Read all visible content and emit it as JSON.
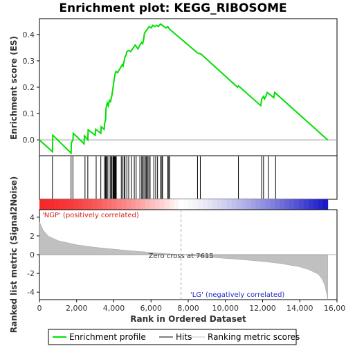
{
  "chart_data": {
    "type": "line",
    "title": "Enrichment plot: KEGG_RIBOSOME",
    "xlabel": "Rank in Ordered Dataset",
    "ylabel_top": "Enrichment score (ES)",
    "ylabel_bottom": "Ranked list metric (Signal2Noise)",
    "xlim": [
      0,
      16000
    ],
    "x_ticks": [
      "0",
      "2,000",
      "4,000",
      "6,000",
      "8,000",
      "10,000",
      "12,000",
      "14,000",
      "16,000"
    ],
    "x_tick_values": [
      0,
      2000,
      4000,
      6000,
      8000,
      10000,
      12000,
      14000,
      16000
    ],
    "es_ylim": [
      -0.06,
      0.46
    ],
    "es_ticks": [
      "0.0",
      "0.1",
      "0.2",
      "0.3",
      "0.4"
    ],
    "es_tick_values": [
      0.0,
      0.1,
      0.2,
      0.3,
      0.4
    ],
    "metric_ylim": [
      -4.8,
      4.8
    ],
    "metric_ticks": [
      "-4",
      "-2",
      "0",
      "2",
      "4"
    ],
    "metric_tick_values": [
      -4,
      -2,
      0,
      2,
      4
    ],
    "series": [
      {
        "name": "Enrichment profile",
        "color": "#00e000",
        "x": [
          0,
          700,
          720,
          1700,
          1720,
          1800,
          1820,
          2400,
          2420,
          2600,
          2620,
          3000,
          3020,
          3300,
          3320,
          3480,
          3500,
          3560,
          3580,
          3650,
          3700,
          3760,
          3820,
          3900,
          3960,
          4000,
          4040,
          4080,
          4120,
          4200,
          4450,
          4500,
          4600,
          4650,
          4700,
          4800,
          4900,
          5000,
          5150,
          5300,
          5400,
          5500,
          5550,
          5600,
          5650,
          5700,
          5800,
          5900,
          6000,
          6100,
          6200,
          6300,
          6400,
          6500,
          6600,
          6700,
          6800,
          6900,
          7000,
          8500,
          8700,
          10650,
          10700,
          11900,
          11950,
          12050,
          12100,
          12200,
          12250,
          12600,
          12650,
          15500
        ],
        "y": [
          0.0,
          -0.045,
          0.018,
          -0.05,
          -0.01,
          0.0,
          0.025,
          -0.015,
          0.015,
          0.0,
          0.038,
          0.018,
          0.04,
          0.025,
          0.05,
          0.04,
          0.06,
          0.08,
          0.12,
          0.14,
          0.13,
          0.15,
          0.145,
          0.17,
          0.2,
          0.22,
          0.24,
          0.255,
          0.26,
          0.255,
          0.285,
          0.28,
          0.315,
          0.32,
          0.335,
          0.34,
          0.335,
          0.345,
          0.36,
          0.345,
          0.36,
          0.37,
          0.365,
          0.38,
          0.405,
          0.41,
          0.42,
          0.43,
          0.425,
          0.435,
          0.43,
          0.435,
          0.43,
          0.44,
          0.435,
          0.43,
          0.425,
          0.43,
          0.42,
          0.33,
          0.325,
          0.2,
          0.205,
          0.13,
          0.155,
          0.165,
          0.155,
          0.17,
          0.18,
          0.16,
          0.18,
          0.0
        ]
      }
    ],
    "hits": [
      700,
      1700,
      1800,
      2450,
      2600,
      3050,
      3300,
      3480,
      3550,
      3580,
      3620,
      3680,
      3800,
      3850,
      3900,
      3960,
      4000,
      4030,
      4060,
      4090,
      4130,
      4400,
      4480,
      4550,
      4600,
      4700,
      4800,
      4950,
      5100,
      5200,
      5400,
      5500,
      5550,
      5620,
      5700,
      5750,
      5820,
      5880,
      5950,
      6150,
      6250,
      6350,
      6500,
      6580,
      6620,
      6900,
      6950,
      7000,
      8500,
      8650,
      10700,
      11950,
      12050,
      12300,
      12700
    ],
    "metric_x": [
      0,
      200,
      500,
      1000,
      2000,
      3000,
      4000,
      5000,
      6000,
      7000,
      7615,
      8000,
      9000,
      10000,
      11000,
      12000,
      13000,
      14000,
      14500,
      15000,
      15200,
      15350,
      15450,
      15500
    ],
    "metric_y": [
      3.5,
      2.6,
      1.95,
      1.5,
      1.05,
      0.78,
      0.58,
      0.4,
      0.24,
      0.08,
      0.0,
      -0.08,
      -0.25,
      -0.4,
      -0.55,
      -0.72,
      -0.95,
      -1.3,
      -1.6,
      -2.1,
      -2.6,
      -3.3,
      -4.2,
      -4.8
    ],
    "zero_cross": 7615,
    "zero_cross_label": "Zero cross at 7615",
    "pos_label": "'NGP' (positively correlated)",
    "neg_label": "'LG' (negatively correlated)",
    "legend": {
      "placement": "bottom",
      "entries": [
        {
          "label": "Enrichment profile",
          "color": "#00e000"
        },
        {
          "label": "Hits",
          "color": "#000000"
        },
        {
          "label": "Ranking metric scores",
          "color": "#c0c0c0"
        }
      ]
    }
  }
}
